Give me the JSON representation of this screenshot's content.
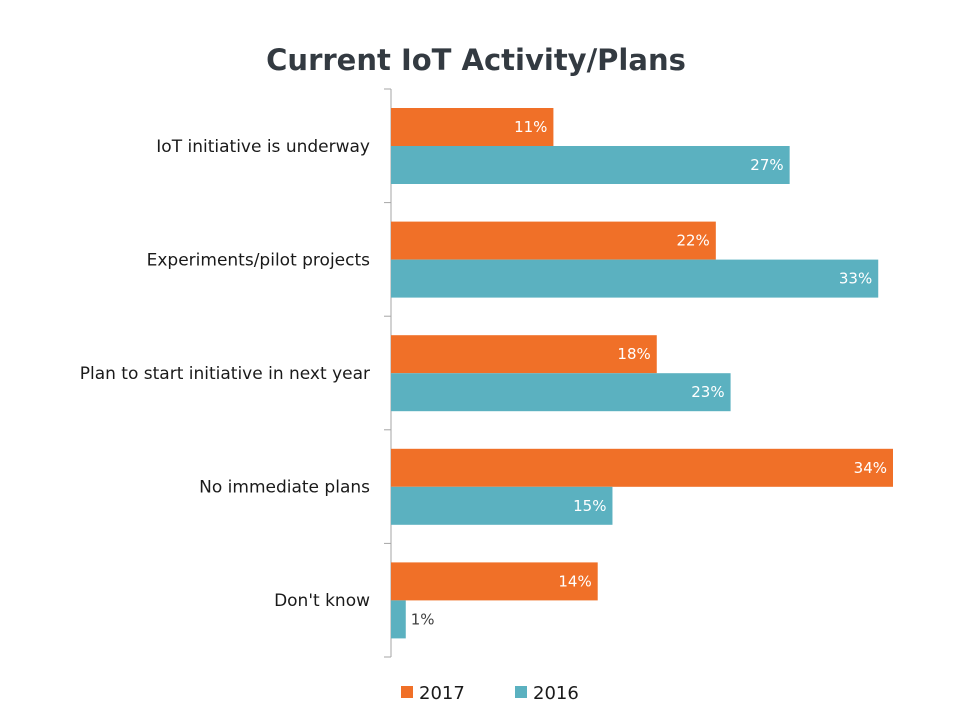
{
  "chart_data": {
    "type": "bar",
    "orientation": "horizontal",
    "title": "Current IoT Activity/Plans",
    "categories": [
      "IoT initiative is underway",
      "Experiments/pilot projects",
      "Plan to start initiative in next year",
      "No immediate plans",
      "Don't know"
    ],
    "series": [
      {
        "name": "2017",
        "color": "#f07028",
        "values": [
          11,
          22,
          18,
          34,
          14
        ],
        "labels": [
          "11%",
          "22%",
          "18%",
          "34%",
          "14%"
        ]
      },
      {
        "name": "2016",
        "color": "#5bb1c0",
        "values": [
          27,
          33,
          23,
          15,
          1
        ],
        "labels": [
          "27%",
          "33%",
          "23%",
          "15%",
          "1%"
        ]
      }
    ],
    "xlim": [
      0,
      34
    ],
    "value_unit": "%",
    "grid": false,
    "legend_position": "bottom"
  }
}
